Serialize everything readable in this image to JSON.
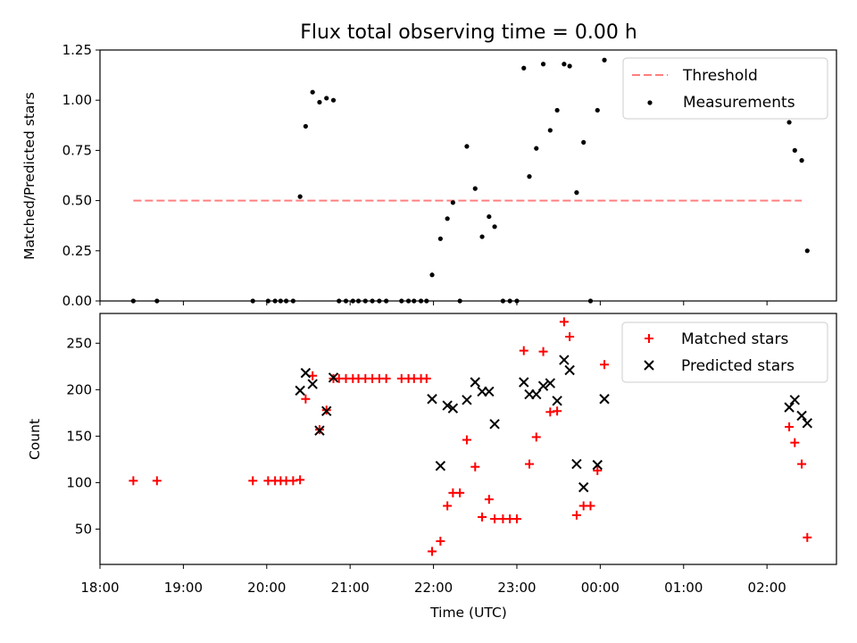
{
  "chart_data": {
    "title": "Flux total observing time = 0.00 h",
    "xlabel": "Time (UTC)",
    "xlim": [
      "18:00",
      "02:50"
    ],
    "x_ticks": [
      "18:00",
      "19:00",
      "20:00",
      "21:00",
      "22:00",
      "23:00",
      "00:00",
      "01:00",
      "02:00"
    ],
    "top": {
      "type": "scatter",
      "ylabel": "Matched/Predicted stars",
      "ylim": [
        0,
        1.25
      ],
      "y_ticks": [
        "0.00",
        "0.25",
        "0.50",
        "0.75",
        "1.00",
        "1.25"
      ],
      "legend_position": "top-right",
      "threshold": {
        "name": "Threshold",
        "value": 0.5,
        "x_range": [
          "18:24",
          "02:25"
        ],
        "color": "#ff7f7f"
      },
      "measurements": {
        "name": "Measurements",
        "color": "#000000",
        "points": [
          {
            "x": "18:24",
            "y": 0.0
          },
          {
            "x": "18:41",
            "y": 0.0
          },
          {
            "x": "19:50",
            "y": 0.0
          },
          {
            "x": "20:01",
            "y": 0.0
          },
          {
            "x": "20:06",
            "y": 0.0
          },
          {
            "x": "20:10",
            "y": 0.0
          },
          {
            "x": "20:14",
            "y": 0.0
          },
          {
            "x": "20:19",
            "y": 0.0
          },
          {
            "x": "20:24",
            "y": 0.52
          },
          {
            "x": "20:28",
            "y": 0.87
          },
          {
            "x": "20:33",
            "y": 1.04
          },
          {
            "x": "20:38",
            "y": 0.99
          },
          {
            "x": "20:43",
            "y": 1.01
          },
          {
            "x": "20:48",
            "y": 1.0
          },
          {
            "x": "20:52",
            "y": 0.0
          },
          {
            "x": "20:57",
            "y": 0.0
          },
          {
            "x": "21:02",
            "y": 0.0
          },
          {
            "x": "21:06",
            "y": 0.0
          },
          {
            "x": "21:11",
            "y": 0.0
          },
          {
            "x": "21:16",
            "y": 0.0
          },
          {
            "x": "21:21",
            "y": 0.0
          },
          {
            "x": "21:26",
            "y": 0.0
          },
          {
            "x": "21:37",
            "y": 0.0
          },
          {
            "x": "21:42",
            "y": 0.0
          },
          {
            "x": "21:46",
            "y": 0.0
          },
          {
            "x": "21:51",
            "y": 0.0
          },
          {
            "x": "21:55",
            "y": 0.0
          },
          {
            "x": "21:59",
            "y": 0.13
          },
          {
            "x": "22:05",
            "y": 0.31
          },
          {
            "x": "22:10",
            "y": 0.41
          },
          {
            "x": "22:14",
            "y": 0.49
          },
          {
            "x": "22:19",
            "y": 0.0
          },
          {
            "x": "22:24",
            "y": 0.77
          },
          {
            "x": "22:30",
            "y": 0.56
          },
          {
            "x": "22:35",
            "y": 0.32
          },
          {
            "x": "22:40",
            "y": 0.42
          },
          {
            "x": "22:44",
            "y": 0.37
          },
          {
            "x": "22:50",
            "y": 0.0
          },
          {
            "x": "22:55",
            "y": 0.0
          },
          {
            "x": "23:00",
            "y": 0.0
          },
          {
            "x": "23:05",
            "y": 1.16
          },
          {
            "x": "23:09",
            "y": 0.62
          },
          {
            "x": "23:14",
            "y": 0.76
          },
          {
            "x": "23:19",
            "y": 1.18
          },
          {
            "x": "23:24",
            "y": 0.85
          },
          {
            "x": "23:29",
            "y": 0.95
          },
          {
            "x": "23:34",
            "y": 1.18
          },
          {
            "x": "23:38",
            "y": 1.17
          },
          {
            "x": "23:43",
            "y": 0.54
          },
          {
            "x": "23:48",
            "y": 0.79
          },
          {
            "x": "23:53",
            "y": 0.0
          },
          {
            "x": "23:58",
            "y": 0.95
          },
          {
            "x": "00:03",
            "y": 1.2
          },
          {
            "x": "02:16",
            "y": 0.89
          },
          {
            "x": "02:20",
            "y": 0.75
          },
          {
            "x": "02:25",
            "y": 0.7
          },
          {
            "x": "02:29",
            "y": 0.25
          }
        ]
      }
    },
    "bottom": {
      "type": "scatter",
      "ylabel": "Count",
      "ylim": [
        12,
        282
      ],
      "y_ticks": [
        "50",
        "100",
        "150",
        "200",
        "250"
      ],
      "legend_position": "top-right",
      "series": [
        {
          "name": "Matched stars",
          "marker": "plus",
          "color": "#ff0000",
          "points": [
            {
              "x": "18:24",
              "y": 102
            },
            {
              "x": "18:41",
              "y": 102
            },
            {
              "x": "19:50",
              "y": 102
            },
            {
              "x": "20:01",
              "y": 102
            },
            {
              "x": "20:06",
              "y": 102
            },
            {
              "x": "20:10",
              "y": 102
            },
            {
              "x": "20:14",
              "y": 102
            },
            {
              "x": "20:19",
              "y": 102
            },
            {
              "x": "20:24",
              "y": 103
            },
            {
              "x": "20:28",
              "y": 190
            },
            {
              "x": "20:33",
              "y": 215
            },
            {
              "x": "20:38",
              "y": 157
            },
            {
              "x": "20:43",
              "y": 178
            },
            {
              "x": "20:48",
              "y": 212
            },
            {
              "x": "20:52",
              "y": 212
            },
            {
              "x": "20:57",
              "y": 212
            },
            {
              "x": "21:02",
              "y": 212
            },
            {
              "x": "21:06",
              "y": 212
            },
            {
              "x": "21:11",
              "y": 212
            },
            {
              "x": "21:16",
              "y": 212
            },
            {
              "x": "21:21",
              "y": 212
            },
            {
              "x": "21:26",
              "y": 212
            },
            {
              "x": "21:37",
              "y": 212
            },
            {
              "x": "21:42",
              "y": 212
            },
            {
              "x": "21:46",
              "y": 212
            },
            {
              "x": "21:51",
              "y": 212
            },
            {
              "x": "21:55",
              "y": 212
            },
            {
              "x": "21:59",
              "y": 26
            },
            {
              "x": "22:05",
              "y": 37
            },
            {
              "x": "22:10",
              "y": 75
            },
            {
              "x": "22:14",
              "y": 89
            },
            {
              "x": "22:19",
              "y": 89
            },
            {
              "x": "22:24",
              "y": 146
            },
            {
              "x": "22:30",
              "y": 117
            },
            {
              "x": "22:35",
              "y": 63
            },
            {
              "x": "22:40",
              "y": 82
            },
            {
              "x": "22:44",
              "y": 61
            },
            {
              "x": "22:50",
              "y": 61
            },
            {
              "x": "22:55",
              "y": 61
            },
            {
              "x": "23:00",
              "y": 61
            },
            {
              "x": "23:05",
              "y": 242
            },
            {
              "x": "23:09",
              "y": 120
            },
            {
              "x": "23:14",
              "y": 149
            },
            {
              "x": "23:19",
              "y": 241
            },
            {
              "x": "23:24",
              "y": 176
            },
            {
              "x": "23:29",
              "y": 177
            },
            {
              "x": "23:34",
              "y": 273
            },
            {
              "x": "23:38",
              "y": 257
            },
            {
              "x": "23:43",
              "y": 65
            },
            {
              "x": "23:48",
              "y": 75
            },
            {
              "x": "23:53",
              "y": 75
            },
            {
              "x": "23:58",
              "y": 113
            },
            {
              "x": "00:03",
              "y": 227
            },
            {
              "x": "02:16",
              "y": 160
            },
            {
              "x": "02:20",
              "y": 143
            },
            {
              "x": "02:25",
              "y": 120
            },
            {
              "x": "02:29",
              "y": 41
            }
          ]
        },
        {
          "name": "Predicted stars",
          "marker": "x",
          "color": "#000000",
          "points": [
            {
              "x": "20:24",
              "y": 199
            },
            {
              "x": "20:28",
              "y": 218
            },
            {
              "x": "20:33",
              "y": 206
            },
            {
              "x": "20:38",
              "y": 156
            },
            {
              "x": "20:43",
              "y": 177
            },
            {
              "x": "20:48",
              "y": 213
            },
            {
              "x": "21:59",
              "y": 190
            },
            {
              "x": "22:05",
              "y": 118
            },
            {
              "x": "22:10",
              "y": 183
            },
            {
              "x": "22:14",
              "y": 180
            },
            {
              "x": "22:24",
              "y": 189
            },
            {
              "x": "22:30",
              "y": 208
            },
            {
              "x": "22:35",
              "y": 198
            },
            {
              "x": "22:40",
              "y": 198
            },
            {
              "x": "22:44",
              "y": 163
            },
            {
              "x": "23:05",
              "y": 208
            },
            {
              "x": "23:09",
              "y": 195
            },
            {
              "x": "23:14",
              "y": 195
            },
            {
              "x": "23:19",
              "y": 204
            },
            {
              "x": "23:24",
              "y": 207
            },
            {
              "x": "23:29",
              "y": 188
            },
            {
              "x": "23:34",
              "y": 232
            },
            {
              "x": "23:38",
              "y": 221
            },
            {
              "x": "23:43",
              "y": 120
            },
            {
              "x": "23:48",
              "y": 95
            },
            {
              "x": "23:58",
              "y": 119
            },
            {
              "x": "00:03",
              "y": 190
            },
            {
              "x": "02:16",
              "y": 181
            },
            {
              "x": "02:20",
              "y": 189
            },
            {
              "x": "02:25",
              "y": 172
            },
            {
              "x": "02:29",
              "y": 164
            }
          ]
        }
      ]
    }
  }
}
